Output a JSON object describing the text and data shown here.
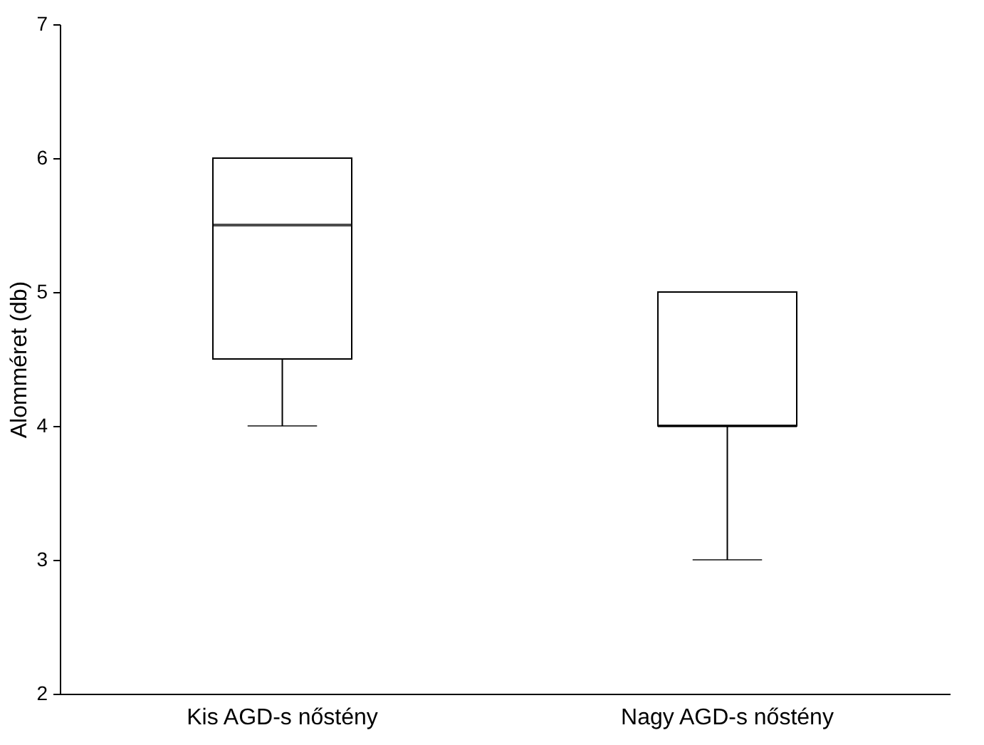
{
  "chart_data": {
    "type": "box",
    "ylabel": "Alomméret (db)",
    "categories": [
      "Kis AGD-s nőstény",
      "Nagy AGD-s nőstény"
    ],
    "boxes": [
      {
        "low": 4,
        "q1": 4.5,
        "median": 5.5,
        "q3": 6,
        "high": 6
      },
      {
        "low": 3,
        "q1": 4,
        "median": 4,
        "q3": 5,
        "high": 5
      }
    ],
    "ylim": [
      2,
      7
    ],
    "yticks": [
      2,
      3,
      4,
      5,
      6,
      7
    ],
    "grid": false
  }
}
